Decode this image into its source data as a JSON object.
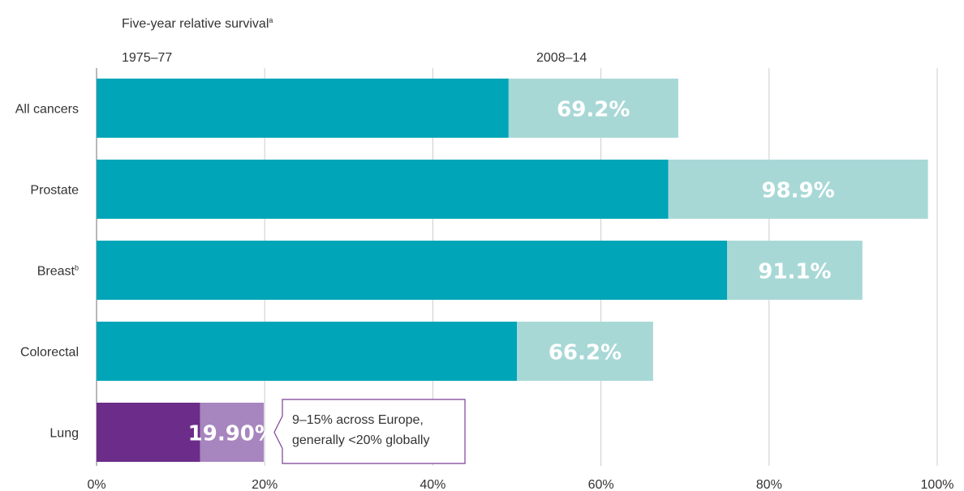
{
  "chart_data": {
    "type": "bar",
    "title": "Five-year relative survival",
    "title_sup": "a",
    "series_labels": [
      "1975–77",
      "2008–14"
    ],
    "categories": [
      {
        "name": "All cancers",
        "sup": ""
      },
      {
        "name": "Prostate",
        "sup": ""
      },
      {
        "name": "Breast",
        "sup": "b"
      },
      {
        "name": "Colorectal",
        "sup": ""
      },
      {
        "name": "Lung",
        "sup": ""
      }
    ],
    "series": [
      {
        "name": "1975–77",
        "values": [
          49,
          68,
          75,
          50,
          12.3
        ]
      },
      {
        "name": "2008–14",
        "values": [
          69.2,
          98.9,
          91.1,
          66.2,
          19.9
        ]
      }
    ],
    "data_labels": [
      "69.2%",
      "98.9%",
      "91.1%",
      "66.2%",
      "19.90%"
    ],
    "xlim": [
      0,
      100
    ],
    "x_ticks": [
      "0%",
      "20%",
      "40%",
      "60%",
      "80%",
      "100%"
    ],
    "grid": true,
    "colors": {
      "early": "#00A5B8",
      "late": "#A8D8D6",
      "lung_early": "#6B2C8A",
      "lung_late": "#A785BE",
      "callout_border": "#7B3F98",
      "grid": "#cccccc",
      "axis": "#888888"
    },
    "annotation": {
      "category": "Lung",
      "lines": [
        "9–15% across Europe,",
        "generally <20% globally"
      ]
    }
  }
}
